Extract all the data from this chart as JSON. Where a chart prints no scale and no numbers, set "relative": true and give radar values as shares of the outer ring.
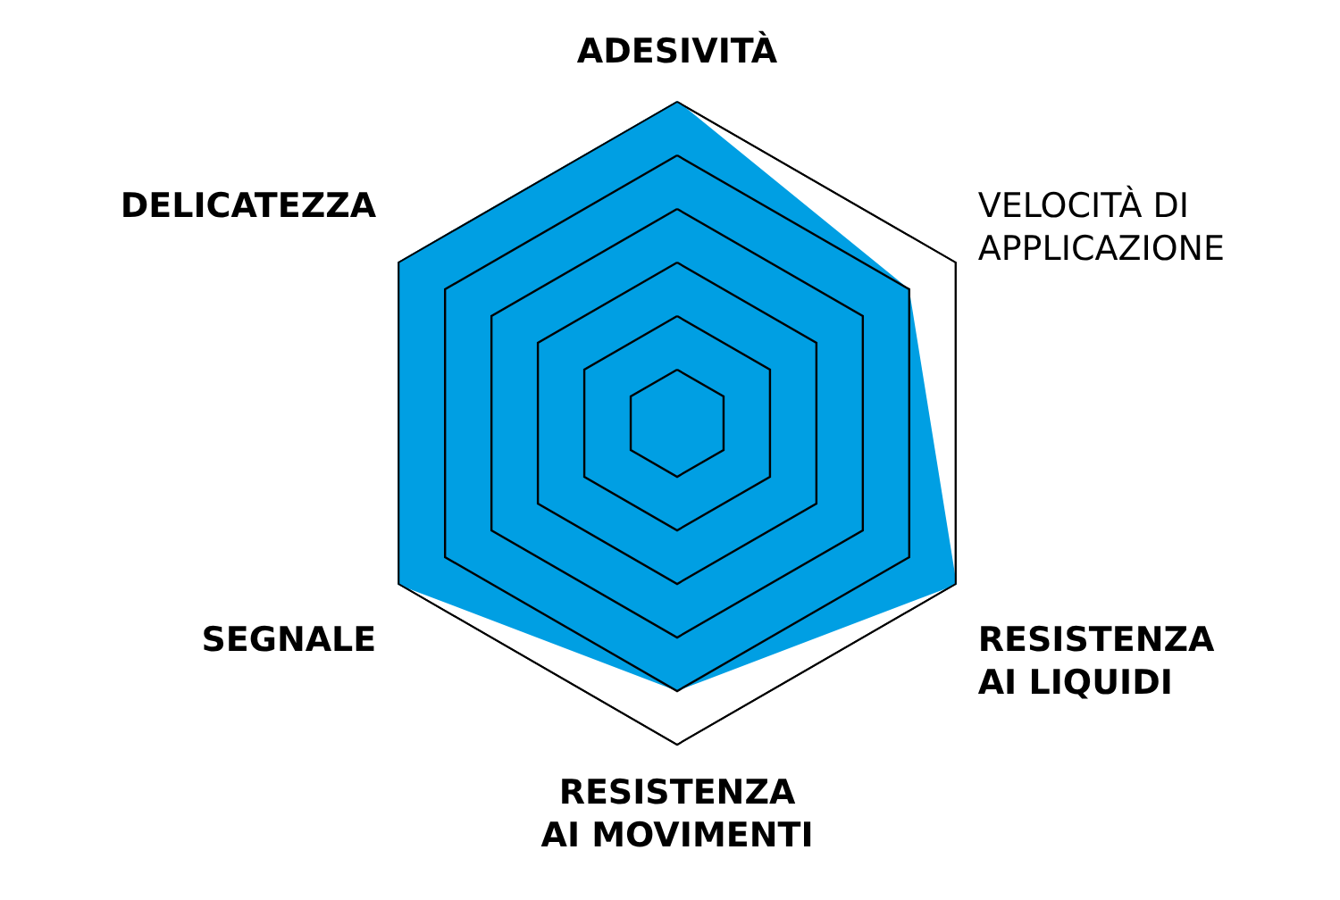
{
  "chart_data": {
    "type": "radar",
    "relative": true,
    "grid": true,
    "categories": [
      "ADESIVITÀ",
      "VELOCITÀ DI APPLICAZIONE",
      "RESISTENZA AI LIQUIDI",
      "RESISTENZA AI MOVIMENTI",
      "SEGNALE",
      "DELICATEZZA"
    ],
    "series": [
      {
        "color": "#009fe3",
        "values": [
          1,
          0.83,
          1,
          0.83,
          1,
          1
        ]
      }
    ]
  }
}
